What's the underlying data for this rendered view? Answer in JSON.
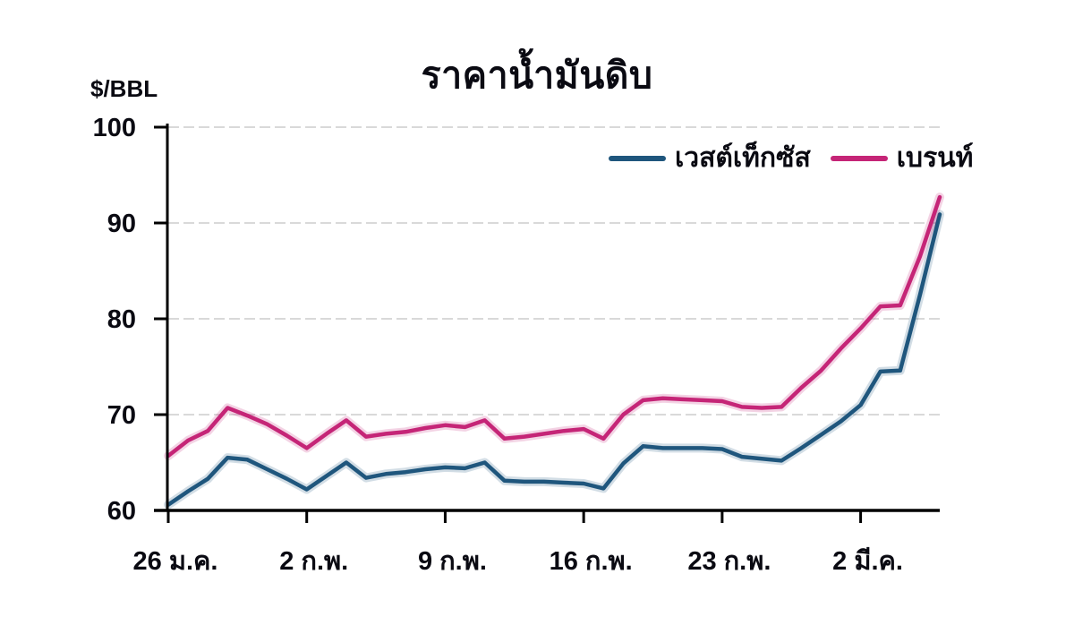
{
  "chart": {
    "title": "ราคาน้ำมันดิบ",
    "y_unit": "$/BBL"
  },
  "chart_data": {
    "type": "line",
    "title": "ราคาน้ำมันดิบ",
    "xlabel": "",
    "ylabel": "$/BBL",
    "ylim": [
      60,
      100
    ],
    "y_ticks": [
      60,
      70,
      80,
      90,
      100
    ],
    "grid": "horizontal dashed gridlines at 70,80,90,100",
    "legend_position": "top-right inside plot",
    "x_tick_positions": [
      0,
      7,
      14,
      21,
      28,
      35
    ],
    "x_tick_labels": [
      "26 ม.ค.",
      "2 ก.พ.",
      "9 ก.พ.",
      "16 ก.พ.",
      "23 ก.พ.",
      "2 มี.ค."
    ],
    "n_points": 40,
    "series": [
      {
        "name": "เวสต์เท็กซัส",
        "color": "#1f567d",
        "values": [
          60.6,
          62.0,
          63.3,
          65.5,
          65.3,
          64.3,
          63.3,
          62.2,
          63.6,
          65.0,
          63.4,
          63.8,
          64.0,
          64.3,
          64.5,
          64.4,
          65.0,
          63.1,
          63.0,
          63.0,
          62.9,
          62.8,
          62.3,
          64.9,
          66.7,
          66.5,
          66.5,
          66.5,
          66.4,
          65.6,
          65.4,
          65.2,
          66.5,
          67.9,
          69.3,
          71.0,
          74.5,
          74.6,
          82.5,
          90.9
        ]
      },
      {
        "name": "เบรนท์",
        "color": "#c52577",
        "values": [
          65.7,
          67.3,
          68.3,
          70.7,
          69.9,
          69.0,
          67.8,
          66.5,
          68.0,
          69.4,
          67.7,
          68.0,
          68.2,
          68.6,
          68.9,
          68.7,
          69.4,
          67.5,
          67.7,
          68.0,
          68.3,
          68.5,
          67.5,
          70.0,
          71.5,
          71.7,
          71.6,
          71.5,
          71.4,
          70.8,
          70.7,
          70.8,
          72.8,
          74.6,
          76.9,
          79.0,
          81.3,
          81.4,
          86.5,
          92.7
        ]
      }
    ],
    "colors": {
      "axis": "#000000",
      "gridline": "#d9d9d9",
      "text": "#0a0a12"
    }
  }
}
